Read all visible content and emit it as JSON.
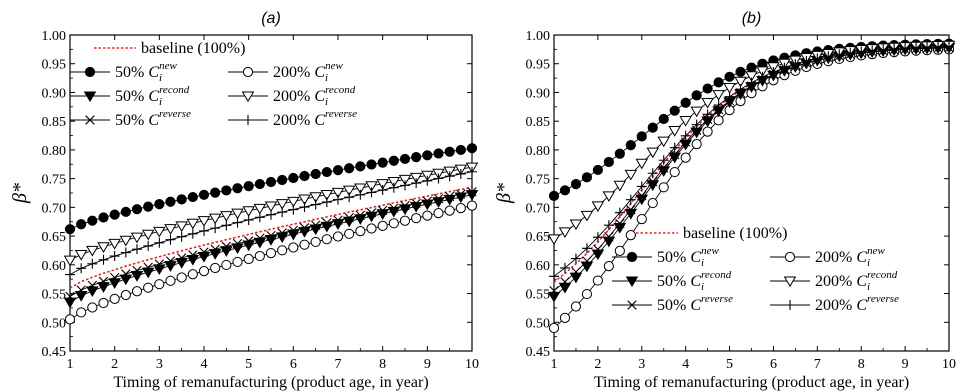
{
  "chart_data": [
    {
      "type": "line",
      "title": "(a)",
      "xlabel": "Timing of remanufacturing (product age, in year)",
      "ylabel": "β*",
      "xlim": [
        1,
        10
      ],
      "ylim": [
        0.45,
        1.0
      ],
      "x_ticks": [
        "1",
        "2",
        "3",
        "4",
        "5",
        "6",
        "7",
        "8",
        "9",
        "10"
      ],
      "y_ticks": [
        "0.45",
        "0.50",
        "0.55",
        "0.60",
        "0.65",
        "0.70",
        "0.75",
        "0.80",
        "0.85",
        "0.90",
        "0.95",
        "1.00"
      ],
      "legend_position": "top-left",
      "legend_rows": [
        [
          {
            "key": "baseline",
            "pct": "baseline (100%)",
            "C": "",
            "sub": "",
            "sup": ""
          }
        ],
        [
          {
            "key": "new50",
            "pct": "50%",
            "C": "C",
            "sub": "i",
            "sup": "new"
          },
          {
            "key": "new200",
            "pct": "200%",
            "C": "C",
            "sub": "i",
            "sup": "new"
          }
        ],
        [
          {
            "key": "recond50",
            "pct": "50%",
            "C": "C",
            "sub": "i",
            "sup": "recond"
          },
          {
            "key": "recond200",
            "pct": "200%",
            "C": "C",
            "sub": "i",
            "sup": "recond"
          }
        ],
        [
          {
            "key": "reverse50",
            "pct": "50%",
            "C": "C",
            "sub": "",
            "sup": "reverse"
          },
          {
            "key": "reverse200",
            "pct": "200%",
            "C": "C",
            "sub": "",
            "sup": "reverse"
          }
        ]
      ],
      "series": [
        {
          "key": "baseline",
          "start": 0.56,
          "end": 0.735,
          "curve": "concave"
        },
        {
          "key": "new50",
          "start": 0.662,
          "end": 0.803,
          "curve": "concave"
        },
        {
          "key": "new200",
          "start": 0.505,
          "end": 0.703,
          "curve": "concave"
        },
        {
          "key": "recond50",
          "start": 0.535,
          "end": 0.722,
          "curve": "concave"
        },
        {
          "key": "recond200",
          "start": 0.608,
          "end": 0.77,
          "curve": "concave"
        },
        {
          "key": "reverse50",
          "start": 0.545,
          "end": 0.727,
          "curve": "concave"
        },
        {
          "key": "reverse200",
          "start": 0.583,
          "end": 0.762,
          "curve": "concave"
        }
      ]
    },
    {
      "type": "line",
      "title": "(b)",
      "xlabel": "Timing of remanufacturing (product age, in year)",
      "ylabel": "β*",
      "xlim": [
        1,
        10
      ],
      "ylim": [
        0.45,
        1.0
      ],
      "x_ticks": [
        "1",
        "2",
        "3",
        "4",
        "5",
        "6",
        "7",
        "8",
        "9",
        "10"
      ],
      "y_ticks": [
        "0.45",
        "0.50",
        "0.55",
        "0.60",
        "0.65",
        "0.70",
        "0.75",
        "0.80",
        "0.85",
        "0.90",
        "0.95",
        "1.00"
      ],
      "legend_position": "bottom-left",
      "legend_rows": [
        [
          {
            "key": "baseline",
            "pct": "baseline (100%)",
            "C": "",
            "sub": "",
            "sup": ""
          }
        ],
        [
          {
            "key": "new50",
            "pct": "50%",
            "C": "C",
            "sub": "i",
            "sup": "new"
          },
          {
            "key": "new200",
            "pct": "200%",
            "C": "C",
            "sub": "i",
            "sup": "new"
          }
        ],
        [
          {
            "key": "recond50",
            "pct": "50%",
            "C": "C",
            "sub": "i",
            "sup": "recond"
          },
          {
            "key": "recond200",
            "pct": "200%",
            "C": "C",
            "sub": "i",
            "sup": "recond"
          }
        ],
        [
          {
            "key": "reverse50",
            "pct": "50%",
            "C": "C",
            "sub": "",
            "sup": "reverse"
          },
          {
            "key": "reverse200",
            "pct": "200%",
            "C": "C",
            "sub": "",
            "sup": "reverse"
          }
        ]
      ],
      "series": [
        {
          "key": "baseline",
          "start": 0.57,
          "end": 0.98,
          "curve": "logistic"
        },
        {
          "key": "new50",
          "start": 0.72,
          "end": 0.985,
          "curve": "logistic"
        },
        {
          "key": "new200",
          "start": 0.49,
          "end": 0.975,
          "curve": "logistic"
        },
        {
          "key": "recond50",
          "start": 0.545,
          "end": 0.978,
          "curve": "logistic"
        },
        {
          "key": "recond200",
          "start": 0.645,
          "end": 0.982,
          "curve": "logistic"
        },
        {
          "key": "reverse50",
          "start": 0.555,
          "end": 0.978,
          "curve": "logistic"
        },
        {
          "key": "reverse200",
          "start": 0.58,
          "end": 0.98,
          "curve": "logistic"
        }
      ]
    }
  ],
  "styles": {
    "baseline": {
      "marker": "none",
      "line": "#e8262c",
      "dash": true
    },
    "new50": {
      "marker": "circle-filled",
      "line": "#000000"
    },
    "new200": {
      "marker": "circle-open",
      "line": "#000000"
    },
    "recond50": {
      "marker": "triangle-down-filled",
      "line": "#000000"
    },
    "recond200": {
      "marker": "triangle-down-open",
      "line": "#000000"
    },
    "reverse50": {
      "marker": "x",
      "line": "#000000"
    },
    "reverse200": {
      "marker": "plus",
      "line": "#000000"
    }
  }
}
